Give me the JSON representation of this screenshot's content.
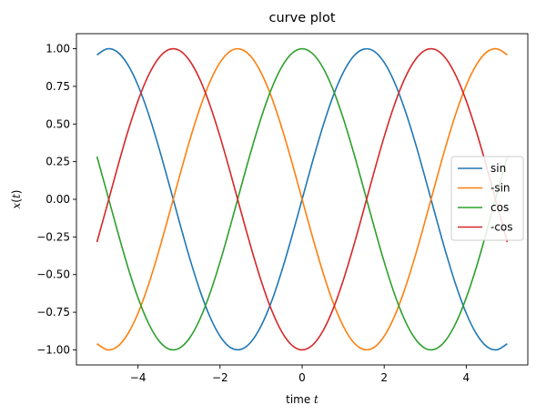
{
  "chart_data": {
    "type": "line",
    "title": "curve plot",
    "xlabel": {
      "prefix": "time ",
      "var": "t"
    },
    "ylabel": {
      "fn": "x",
      "open": "(",
      "var": "t",
      "close": ")"
    },
    "xlim": [
      -5.5,
      5.5
    ],
    "ylim": [
      -1.1,
      1.1
    ],
    "xticks": [
      -4,
      -2,
      0,
      2,
      4
    ],
    "xtick_labels": [
      "−4",
      "−2",
      "0",
      "2",
      "4"
    ],
    "yticks": [
      -1.0,
      -0.75,
      -0.5,
      -0.25,
      0.0,
      0.25,
      0.5,
      0.75,
      1.0
    ],
    "ytick_labels": [
      "−1.00",
      "−0.75",
      "−0.50",
      "−0.25",
      "0.00",
      "0.25",
      "0.50",
      "0.75",
      "1.00"
    ],
    "grid": false,
    "legend_position": "center-right",
    "x": [
      -5.0,
      -4.75,
      -4.5,
      -4.25,
      -4.0,
      -3.75,
      -3.5,
      -3.25,
      -3.0,
      -2.75,
      -2.5,
      -2.25,
      -2.0,
      -1.75,
      -1.5,
      -1.25,
      -1.0,
      -0.75,
      -0.5,
      -0.25,
      0.0,
      0.25,
      0.5,
      0.75,
      1.0,
      1.25,
      1.5,
      1.75,
      2.0,
      2.25,
      2.5,
      2.75,
      3.0,
      3.25,
      3.5,
      3.75,
      4.0,
      4.25,
      4.5,
      4.75,
      5.0
    ],
    "series": [
      {
        "name": "sin",
        "color": "#1f77b4",
        "values": [
          0.959,
          0.999,
          0.978,
          0.895,
          0.757,
          0.572,
          0.351,
          0.108,
          -0.141,
          -0.382,
          -0.598,
          -0.778,
          -0.909,
          -0.984,
          -0.997,
          -0.949,
          -0.841,
          -0.682,
          -0.479,
          -0.247,
          0.0,
          0.247,
          0.479,
          0.682,
          0.841,
          0.949,
          0.997,
          0.984,
          0.909,
          0.778,
          0.598,
          0.382,
          0.141,
          -0.108,
          -0.351,
          -0.572,
          -0.757,
          -0.895,
          -0.978,
          -0.999,
          -0.959
        ]
      },
      {
        "name": "-sin",
        "color": "#ff7f0e",
        "values": [
          -0.959,
          -0.999,
          -0.978,
          -0.895,
          -0.757,
          -0.572,
          -0.351,
          -0.108,
          0.141,
          0.382,
          0.598,
          0.778,
          0.909,
          0.984,
          0.997,
          0.949,
          0.841,
          0.682,
          0.479,
          0.247,
          0.0,
          -0.247,
          -0.479,
          -0.682,
          -0.841,
          -0.949,
          -0.997,
          -0.984,
          -0.909,
          -0.778,
          -0.598,
          -0.382,
          -0.141,
          0.108,
          0.351,
          0.572,
          0.757,
          0.895,
          0.978,
          0.999,
          0.959
        ]
      },
      {
        "name": "cos",
        "color": "#2ca02c",
        "values": [
          0.284,
          0.038,
          -0.211,
          -0.447,
          -0.654,
          -0.82,
          -0.936,
          -0.994,
          -0.99,
          -0.924,
          -0.801,
          -0.628,
          -0.416,
          -0.178,
          0.071,
          0.315,
          0.54,
          0.732,
          0.878,
          0.969,
          1.0,
          0.969,
          0.878,
          0.732,
          0.54,
          0.315,
          0.071,
          -0.178,
          -0.416,
          -0.628,
          -0.801,
          -0.924,
          -0.99,
          -0.994,
          -0.936,
          -0.82,
          -0.654,
          -0.447,
          -0.211,
          0.038,
          0.284
        ]
      },
      {
        "name": "-cos",
        "color": "#d62728",
        "values": [
          -0.284,
          -0.038,
          0.211,
          0.447,
          0.654,
          0.82,
          0.936,
          0.994,
          0.99,
          0.924,
          0.801,
          0.628,
          0.416,
          0.178,
          -0.071,
          -0.315,
          -0.54,
          -0.732,
          -0.878,
          -0.969,
          -1.0,
          -0.969,
          -0.878,
          -0.732,
          -0.54,
          -0.315,
          -0.071,
          0.178,
          0.416,
          0.628,
          0.801,
          0.924,
          0.99,
          0.994,
          0.936,
          0.82,
          0.654,
          0.447,
          0.211,
          -0.038,
          -0.284
        ]
      }
    ]
  }
}
